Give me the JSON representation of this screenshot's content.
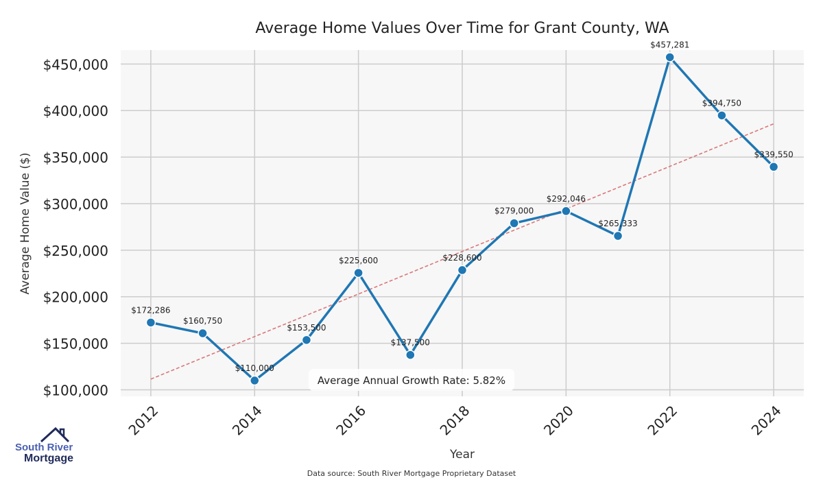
{
  "chart_data": {
    "type": "line",
    "title": "Average Home Values Over Time for Grant County, WA",
    "xlabel": "Year",
    "ylabel": "Average Home Value ($)",
    "x": [
      2012,
      2013,
      2014,
      2015,
      2016,
      2017,
      2018,
      2019,
      2020,
      2021,
      2022,
      2023,
      2024
    ],
    "values": [
      172286,
      160750,
      110000,
      153500,
      225600,
      137500,
      228600,
      279000,
      292046,
      265333,
      457281,
      394750,
      339550
    ],
    "data_labels": [
      "$172,286",
      "$160,750",
      "$110,000",
      "$153,500",
      "$225,600",
      "$137,500",
      "$228,600",
      "$279,000",
      "$292,046",
      "$265,333",
      "$457,281",
      "$394,750",
      "$339,550"
    ],
    "x_ticks": [
      "2012",
      "2014",
      "2016",
      "2018",
      "2020",
      "2022",
      "2024"
    ],
    "y_ticks": [
      100000,
      150000,
      200000,
      250000,
      300000,
      350000,
      400000,
      450000
    ],
    "y_tick_labels": [
      "$100,000",
      "$150,000",
      "$200,000",
      "$250,000",
      "$300,000",
      "$350,000",
      "$400,000",
      "$450,000"
    ],
    "xlim": [
      2011.42,
      2024.58
    ],
    "ylim": [
      93000,
      465000
    ],
    "trend": {
      "x": [
        2012,
        2024
      ],
      "y": [
        111500,
        385800
      ],
      "color": "#d9777a"
    },
    "annotation": "Average Annual Growth Rate: 5.82%",
    "grid": true,
    "line_color": "#1f77b4",
    "background": "#f7f7f7"
  },
  "footer": {
    "source": "Data source: South River Mortgage Proprietary Dataset"
  },
  "logo": {
    "line1": "South River",
    "line2": "Mortgage"
  }
}
